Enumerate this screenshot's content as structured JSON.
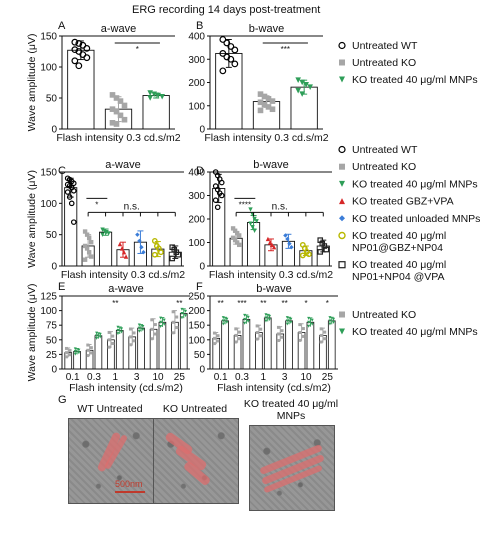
{
  "figure_title": "ERG recording 14 days post-treatment",
  "panel_letters": {
    "A": "A",
    "B": "B",
    "C": "C",
    "D": "D",
    "E": "E",
    "F": "F",
    "G": "G"
  },
  "colors": {
    "wt": "#000000",
    "ko": "#a6a6a6",
    "treated": "#2e9e58",
    "gbz_vpa": "#d62728",
    "unloaded": "#3b7dd8",
    "np01_gbz": "#b8b800",
    "np01_vpa": "#222222"
  },
  "legend1": {
    "items": [
      {
        "label": "Untreated WT",
        "marker": "open-circle",
        "color": "#000000"
      },
      {
        "label": "Untreated KO",
        "marker": "square",
        "color": "#a6a6a6"
      },
      {
        "label": "KO treated 40 μg/ml MNPs",
        "marker": "triangle-down",
        "color": "#2e9e58"
      }
    ]
  },
  "legend2": {
    "items": [
      {
        "label": "Untreated WT",
        "marker": "open-circle",
        "color": "#000000"
      },
      {
        "label": "Untreated KO",
        "marker": "square",
        "color": "#a6a6a6"
      },
      {
        "label": "KO treated 40 μg/ml MNPs",
        "marker": "triangle-down",
        "color": "#2e9e58"
      },
      {
        "label": "KO treated GBZ+VPA",
        "marker": "triangle-up",
        "color": "#d62728"
      },
      {
        "label": "KO treated unloaded MNPs",
        "marker": "diamond",
        "color": "#3b7dd8"
      },
      {
        "label": "KO treated 40 μg/ml",
        "label2": "NP01@GBZ+NP04",
        "marker": "open-circle-yellow",
        "color": "#b8b800"
      },
      {
        "label": "KO treated 40 μg/ml",
        "label2": "NP01+NP04 @VPA",
        "marker": "open-square",
        "color": "#222222"
      }
    ]
  },
  "legend3": {
    "items": [
      {
        "label": "Untreated KO",
        "marker": "square",
        "color": "#a6a6a6"
      },
      {
        "label": "KO treated 40 μg/ml MNPs",
        "marker": "triangle-down",
        "color": "#2e9e58"
      }
    ]
  },
  "chart_data": [
    {
      "id": "A",
      "type": "bar",
      "title": "a-wave",
      "xlabel": "Flash intensity 0.3 cd.s/m2",
      "ylabel": "Wave amplitude (μV)",
      "ylim": [
        0,
        150
      ],
      "yticks": [
        "0",
        "50",
        "100",
        "150"
      ],
      "categories": [
        "Untreated WT",
        "Untreated KO",
        "KO treated 40 μg/ml MNPs"
      ],
      "values": [
        127,
        32,
        54
      ],
      "errors": [
        15,
        20,
        4
      ],
      "points": [
        [
          140,
          138,
          135,
          130,
          128,
          125,
          120,
          115,
          110,
          102
        ],
        [
          55,
          50,
          45,
          38,
          32,
          28,
          22,
          15,
          10,
          8
        ],
        [
          58,
          56,
          54,
          52,
          50
        ]
      ],
      "annotations": [
        {
          "text": "*",
          "from": 1,
          "to": 2
        }
      ]
    },
    {
      "id": "B",
      "type": "bar",
      "title": "b-wave",
      "xlabel": "Flash intensity 0.3 cd.s/m2",
      "ylabel": "",
      "ylim": [
        0,
        400
      ],
      "yticks": [
        "0",
        "100",
        "200",
        "300",
        "400"
      ],
      "categories": [
        "Untreated WT",
        "Untreated KO",
        "KO treated 40 μg/ml MNPs"
      ],
      "values": [
        325,
        118,
        180
      ],
      "errors": [
        60,
        25,
        30
      ],
      "points": [
        [
          385,
          370,
          355,
          340,
          325,
          310,
          300,
          280,
          250
        ],
        [
          150,
          140,
          130,
          120,
          115,
          105,
          95,
          85,
          80
        ],
        [
          210,
          200,
          190,
          180,
          165,
          150
        ]
      ],
      "annotations": [
        {
          "text": "***",
          "from": 1,
          "to": 2
        }
      ]
    },
    {
      "id": "C",
      "type": "bar",
      "title": "a-wave",
      "xlabel": "Flash intensity 0.3 cd.s/m2",
      "ylabel": "Wave amplitude (μV)",
      "ylim": [
        0,
        150
      ],
      "yticks": [
        "0",
        "50",
        "100",
        "150"
      ],
      "categories": [
        "Untreated WT",
        "Untreated KO",
        "KO treated 40 μg/ml MNPs",
        "KO treated GBZ+VPA",
        "KO treated unloaded MNPs",
        "NP01@GBZ+NP04",
        "NP01+NP04 @VPA"
      ],
      "values": [
        125,
        32,
        54,
        26,
        38,
        27,
        22
      ],
      "errors": [
        15,
        18,
        5,
        12,
        18,
        12,
        10
      ],
      "points": [
        [
          140,
          138,
          135,
          132,
          130,
          128,
          125,
          120,
          118,
          110,
          100,
          70
        ],
        [
          55,
          50,
          45,
          38,
          32,
          28,
          22,
          15,
          10
        ],
        [
          58,
          56,
          54,
          52,
          50
        ],
        [
          35,
          28,
          22,
          15
        ],
        [
          50,
          40,
          30,
          22
        ],
        [
          40,
          32,
          28,
          22,
          18
        ],
        [
          30,
          26,
          22,
          18,
          12
        ]
      ],
      "annotations": [
        {
          "text": "*",
          "from": 1,
          "to": 2
        },
        {
          "text": "n.s.",
          "from": 1,
          "to": 6
        }
      ]
    },
    {
      "id": "D",
      "type": "bar",
      "title": "b-wave",
      "xlabel": "Flash intensity 0.3 cd.s/m2",
      "ylabel": "",
      "ylim": [
        0,
        400
      ],
      "yticks": [
        "0",
        "100",
        "200",
        "300",
        "400"
      ],
      "categories": [
        "Untreated WT",
        "Untreated KO",
        "KO treated 40 μg/ml MNPs",
        "KO treated GBZ+VPA",
        "KO treated unloaded MNPs",
        "NP01@GBZ+NP04",
        "NP01+NP04 @VPA"
      ],
      "values": [
        330,
        118,
        185,
        90,
        105,
        65,
        85
      ],
      "errors": [
        60,
        25,
        30,
        25,
        30,
        20,
        25
      ],
      "points": [
        [
          400,
          385,
          370,
          355,
          340,
          325,
          310,
          300,
          280,
          250
        ],
        [
          160,
          150,
          140,
          130,
          120,
          110,
          100,
          90
        ],
        [
          240,
          220,
          200,
          190,
          180,
          165,
          150
        ],
        [
          115,
          100,
          90,
          80
        ],
        [
          130,
          115,
          95,
          80
        ],
        [
          90,
          75,
          60,
          50,
          45
        ],
        [
          110,
          95,
          85,
          70,
          60
        ]
      ],
      "annotations": [
        {
          "text": "****",
          "from": 1,
          "to": 2
        },
        {
          "text": "n.s.",
          "from": 1,
          "to": 6
        }
      ]
    },
    {
      "id": "E",
      "type": "bar",
      "title": "a-wave",
      "xlabel": "Flash intensity (cd.s/m2)",
      "ylabel": "Wave amplitude (μV)",
      "ylim": [
        0,
        125
      ],
      "yticks": [
        "0",
        "25",
        "50",
        "75",
        "100",
        "125"
      ],
      "categories": [
        "0.1",
        "0.3",
        "1",
        "3",
        "10",
        "25"
      ],
      "series": [
        {
          "name": "Untreated KO",
          "values": [
            28,
            32,
            50,
            55,
            68,
            80
          ],
          "errors": [
            8,
            10,
            14,
            15,
            18,
            20
          ]
        },
        {
          "name": "KO treated 40 μg/ml MNPs",
          "values": [
            30,
            57,
            66,
            70,
            80,
            95
          ],
          "errors": [
            5,
            5,
            6,
            6,
            8,
            8
          ]
        }
      ],
      "sig": [
        "",
        "",
        "**",
        "",
        "",
        "**"
      ]
    },
    {
      "id": "F",
      "type": "bar",
      "title": "b-wave",
      "xlabel": "Flash intensity (cd.s/m2)",
      "ylabel": "",
      "ylim": [
        0,
        250
      ],
      "yticks": [
        "0",
        "50",
        "100",
        "150",
        "200",
        "250"
      ],
      "categories": [
        "0.1",
        "0.3",
        "1",
        "3",
        "10",
        "25"
      ],
      "series": [
        {
          "name": "Untreated KO",
          "values": [
            105,
            115,
            125,
            120,
            125,
            115
          ],
          "errors": [
            20,
            25,
            25,
            25,
            30,
            25
          ]
        },
        {
          "name": "KO treated 40 μg/ml MNPs",
          "values": [
            165,
            170,
            175,
            165,
            160,
            165
          ],
          "errors": [
            12,
            15,
            12,
            12,
            15,
            12
          ]
        }
      ],
      "sig": [
        "**",
        "***",
        "**",
        "**",
        "*",
        "*"
      ]
    }
  ],
  "panel_g": {
    "titles": [
      "WT Untreated",
      "KO Untreated",
      "KO treated 40 μg/ml MNPs"
    ],
    "scale_label": "500nm"
  }
}
